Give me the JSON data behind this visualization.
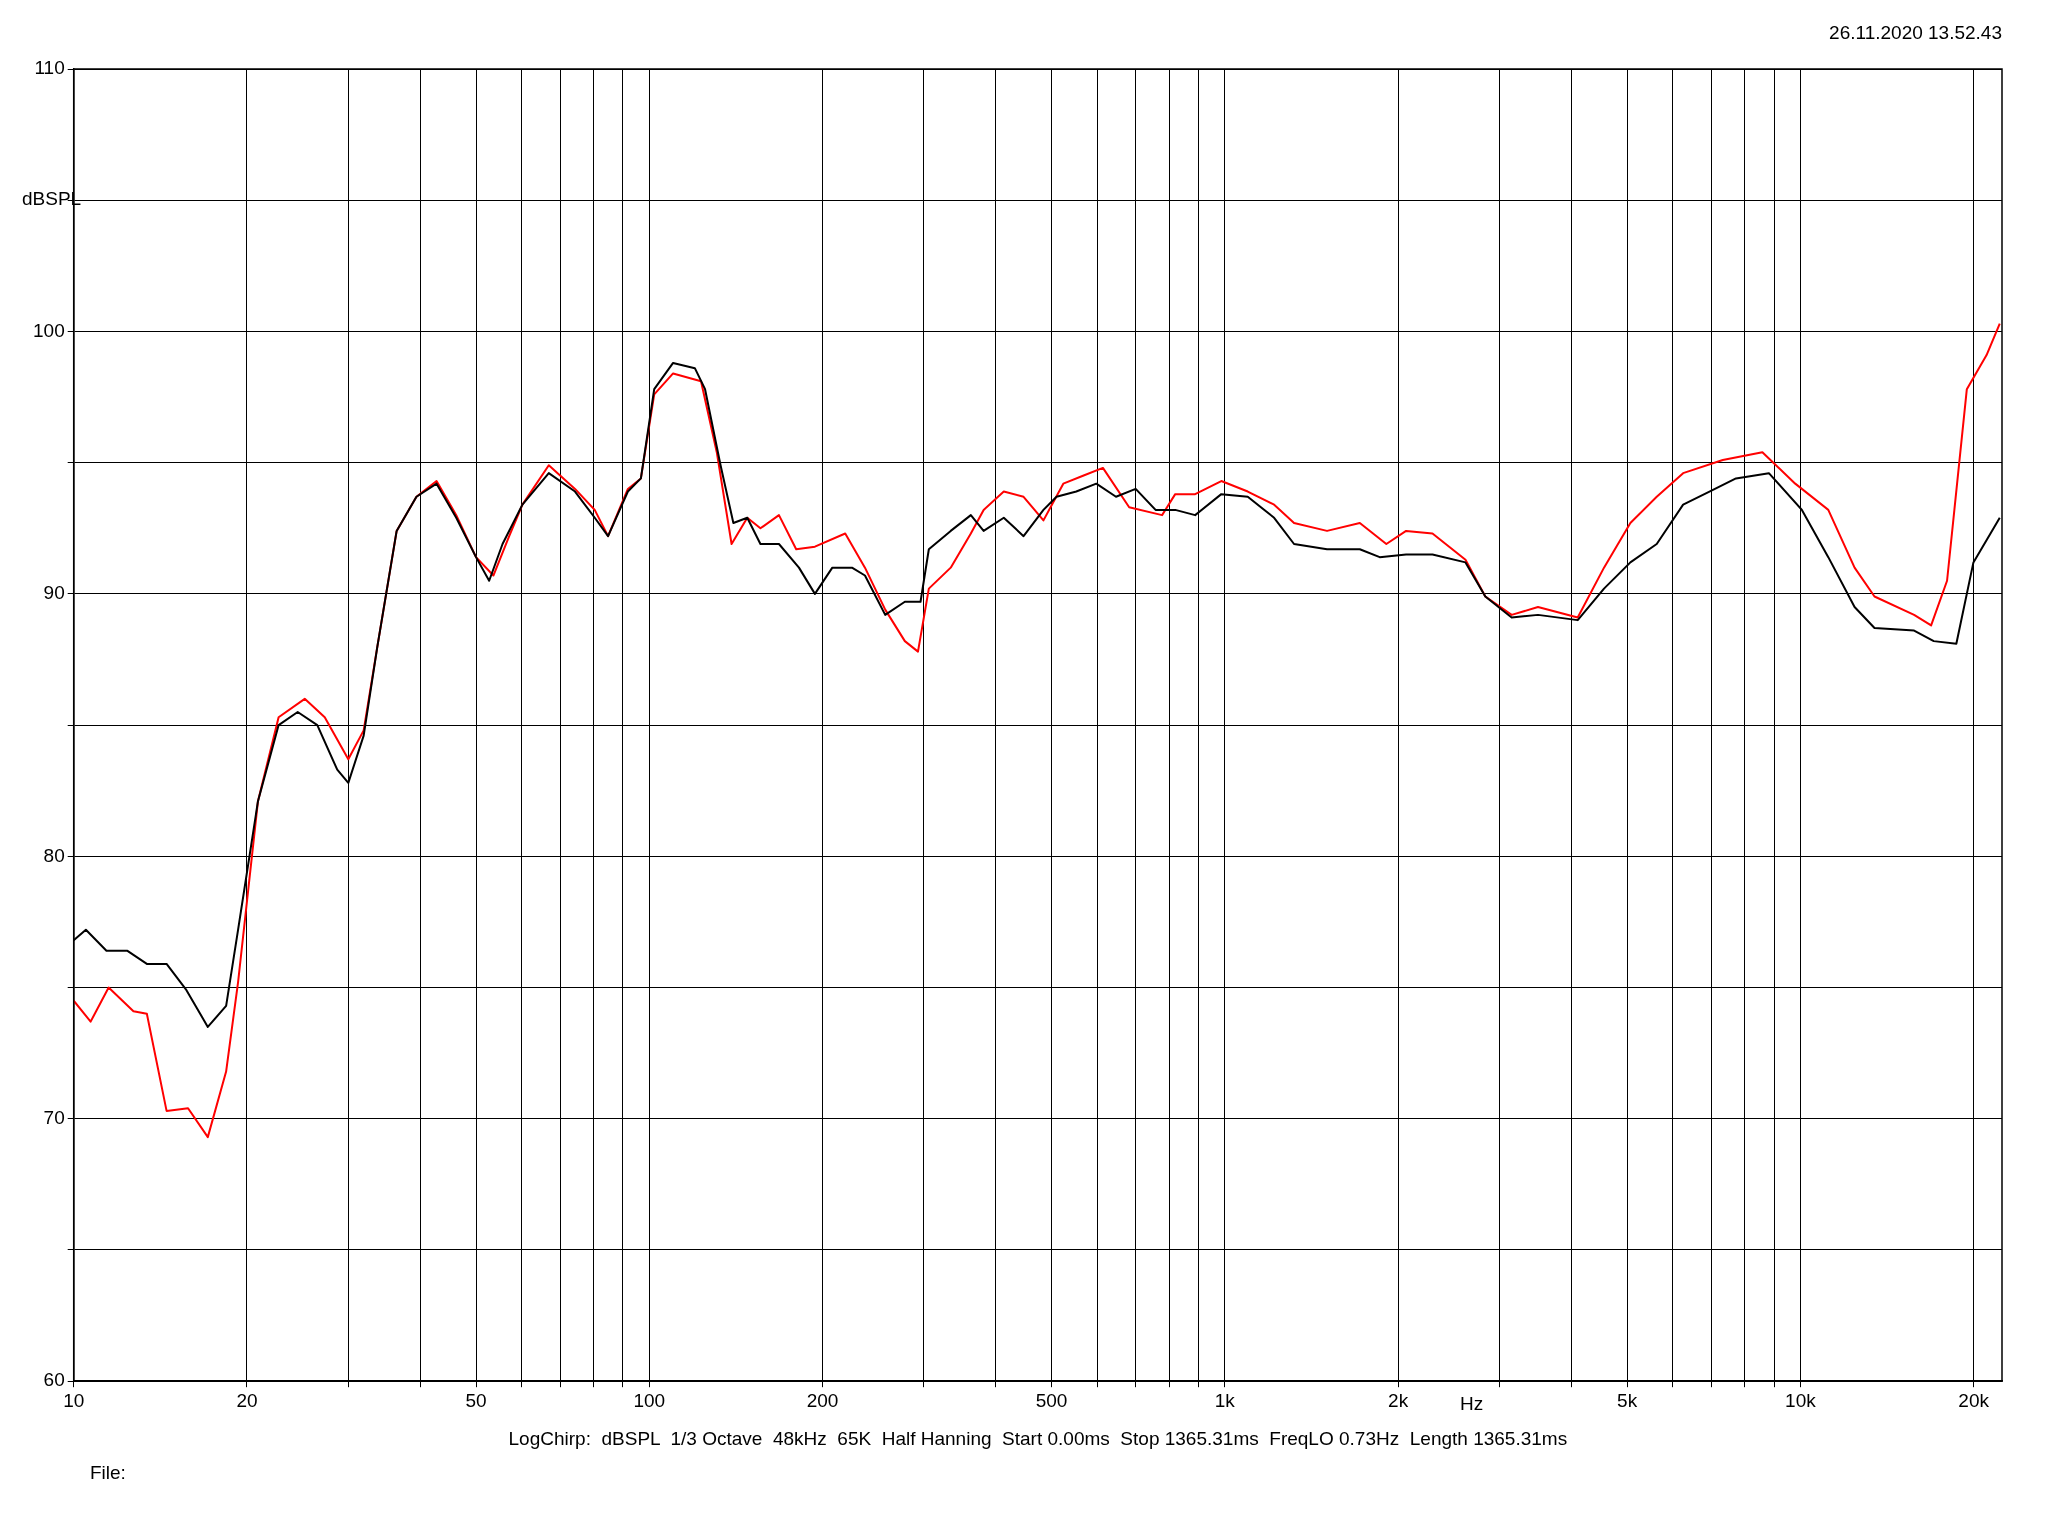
{
  "chart_data": {
    "type": "line",
    "xlabel": "Hz",
    "ylabel": "dBSPL",
    "log": "x",
    "grid": true,
    "legend": false,
    "marker": "none",
    "line_style": "solid",
    "xlim": [
      10,
      22400
    ],
    "ylim": [
      60,
      110
    ],
    "xticks": [
      10,
      20,
      {
        "value": 30,
        "label": null
      },
      {
        "value": 40,
        "label": null
      },
      50,
      {
        "value": 60,
        "label": null
      },
      {
        "value": 70,
        "label": null
      },
      {
        "value": 80,
        "label": null
      },
      {
        "value": 90,
        "label": null
      },
      100,
      200,
      {
        "value": 300,
        "label": null
      },
      {
        "value": 400,
        "label": null
      },
      500,
      {
        "value": 600,
        "label": null
      },
      {
        "value": 700,
        "label": null
      },
      {
        "value": 800,
        "label": null
      },
      {
        "value": 900,
        "label": null
      },
      {
        "value": 1000,
        "label": "1k"
      },
      {
        "value": 2000,
        "label": "2k"
      },
      {
        "value": 3000,
        "label": null
      },
      {
        "value": 4000,
        "label": null
      },
      {
        "value": 5000,
        "label": "5k"
      },
      {
        "value": 6000,
        "label": null
      },
      {
        "value": 7000,
        "label": null
      },
      {
        "value": 8000,
        "label": null
      },
      {
        "value": 9000,
        "label": null
      },
      {
        "value": 10000,
        "label": "10k"
      },
      {
        "value": 20000,
        "label": "20k"
      }
    ],
    "yticks": [
      60,
      {
        "value": 65,
        "label": null
      },
      70,
      {
        "value": 75,
        "label": null
      },
      80,
      {
        "value": 85,
        "label": null
      },
      90,
      {
        "value": 95,
        "label": null
      },
      100,
      {
        "value": 105,
        "label": null
      },
      110
    ],
    "annotations": [
      "26.11.2020 13.52.43",
      "LogChirp:  dBSPL  1/3 Octave  48kHz  65K  Half Hanning  Start 0.00ms  Stop 1365.31ms  FreqLO 0.73Hz  Length 1365.31ms",
      "File:"
    ],
    "series": [
      {
        "color": "#000000",
        "x": [
          10,
          10.5,
          11.4,
          12.4,
          13.4,
          14.5,
          15.7,
          17.1,
          18.4,
          19.3,
          20.9,
          22.7,
          24.5,
          26.5,
          28.7,
          30.0,
          31.9,
          33.7,
          36.4,
          39.4,
          42.7,
          46.2,
          50.0,
          52.7,
          55.6,
          60.2,
          66.9,
          74.3,
          80.4,
          84.8,
          91.8,
          96.7,
          102,
          110,
          120,
          125,
          133,
          140,
          148,
          156,
          168,
          182,
          194,
          208,
          225,
          237,
          257,
          278,
          296,
          306,
          334,
          362,
          381,
          413,
          447,
          484,
          510,
          552,
          598,
          647,
          700,
          758,
          820,
          888,
          986,
          1096,
          1218,
          1319,
          1505,
          1716,
          1858,
          2065,
          2295,
          2619,
          2835,
          3150,
          3500,
          4103,
          4558,
          5065,
          5628,
          6255,
          6950,
          7727,
          8815,
          10060,
          11180,
          12420,
          13450,
          15760,
          17050,
          18660,
          19980,
          22200
        ],
        "values": [
          76.8,
          77.2,
          76.4,
          76.4,
          75.9,
          75.9,
          74.9,
          73.5,
          74.3,
          77.2,
          82.1,
          85.0,
          85.5,
          85.0,
          83.3,
          82.8,
          84.6,
          88.0,
          92.4,
          93.7,
          94.2,
          92.9,
          91.4,
          90.5,
          91.9,
          93.4,
          94.6,
          93.9,
          92.9,
          92.2,
          93.9,
          94.4,
          97.8,
          98.8,
          98.6,
          97.8,
          94.9,
          92.7,
          92.9,
          91.9,
          91.9,
          91.0,
          90.0,
          91.0,
          91.0,
          90.7,
          89.2,
          89.7,
          89.7,
          91.7,
          92.4,
          93.0,
          92.4,
          92.9,
          92.2,
          93.2,
          93.7,
          93.9,
          94.2,
          93.7,
          94.0,
          93.2,
          93.2,
          93.0,
          93.8,
          93.7,
          92.9,
          91.9,
          91.7,
          91.7,
          91.4,
          91.5,
          91.5,
          91.2,
          89.9,
          89.1,
          89.2,
          89.0,
          90.2,
          91.2,
          91.9,
          93.4,
          93.9,
          94.4,
          94.6,
          93.2,
          91.4,
          89.5,
          88.7,
          88.6,
          88.2,
          88.1,
          91.2,
          92.9
        ]
      },
      {
        "color": "#ff0000",
        "x": [
          10,
          10.7,
          11.5,
          12.7,
          13.4,
          14.5,
          15.8,
          17.1,
          18.4,
          19.3,
          20.9,
          22.7,
          25.2,
          27.3,
          30.0,
          31.9,
          33.7,
          36.4,
          39.4,
          42.7,
          46.2,
          50.0,
          53.6,
          57.1,
          60.2,
          66.9,
          74.3,
          80.4,
          84.8,
          91.8,
          96.7,
          102,
          110,
          123,
          131,
          139,
          148,
          156,
          168,
          180,
          194,
          219,
          237,
          257,
          278,
          293,
          306,
          334,
          362,
          381,
          413,
          447,
          484,
          524,
          567,
          614,
          682,
          778,
          820,
          888,
          986,
          1096,
          1218,
          1319,
          1505,
          1716,
          1908,
          2065,
          2295,
          2619,
          2835,
          3150,
          3500,
          4103,
          4558,
          5065,
          5628,
          6255,
          7330,
          8589,
          9795,
          11180,
          12420,
          13450,
          15760,
          16870,
          17980,
          19460,
          21060,
          22200
        ],
        "values": [
          74.5,
          73.7,
          75.0,
          74.1,
          74.0,
          70.3,
          70.4,
          69.3,
          71.8,
          75.2,
          82.1,
          85.3,
          86.0,
          85.3,
          83.7,
          84.8,
          88.0,
          92.4,
          93.7,
          94.3,
          93.0,
          91.4,
          90.7,
          92.2,
          93.4,
          94.9,
          94.0,
          93.2,
          92.2,
          94.0,
          94.4,
          97.6,
          98.4,
          98.1,
          95.4,
          91.9,
          92.9,
          92.5,
          93.0,
          91.7,
          91.8,
          92.3,
          91.0,
          89.4,
          88.2,
          87.8,
          90.2,
          91.0,
          92.3,
          93.2,
          93.9,
          93.7,
          92.8,
          94.2,
          94.5,
          94.8,
          93.3,
          93.0,
          93.8,
          93.8,
          94.3,
          93.9,
          93.4,
          92.7,
          92.4,
          92.7,
          91.9,
          92.4,
          92.3,
          91.3,
          89.9,
          89.2,
          89.5,
          89.1,
          91.0,
          92.7,
          93.7,
          94.6,
          95.1,
          95.4,
          94.2,
          93.2,
          91.0,
          89.9,
          89.2,
          88.8,
          90.5,
          97.8,
          99.1,
          100.3
        ]
      }
    ]
  }
}
